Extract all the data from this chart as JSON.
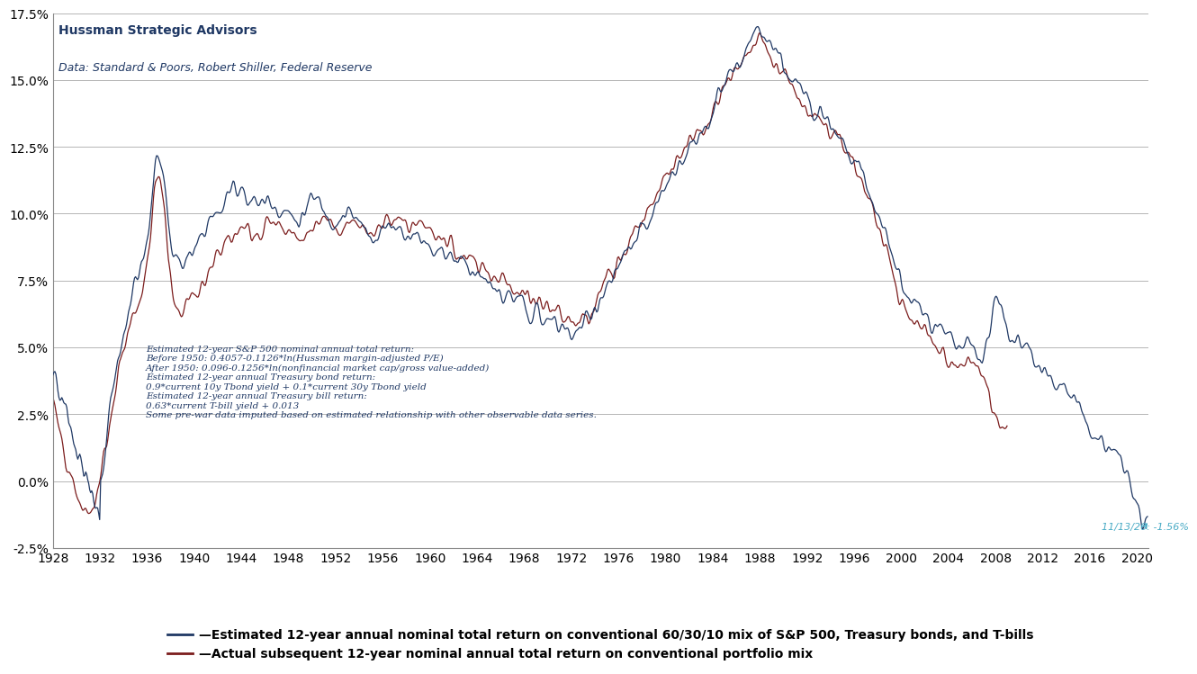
{
  "title_line1": "Hussman Strategic Advisors",
  "title_line2": "Data: Standard & Poors, Robert Shiller, Federal Reserve",
  "annotation_text": [
    "Estimated 12-year S&P 500 nominal annual total return:",
    "Before 1950: 0.4057-0.1126*ln(Hussman margin-adjusted P/E)",
    "After 1950: 0.096-0.1256*ln(nonfinancial market cap/gross value-added)",
    "Estimated 12-year annual Treasury bond return:",
    "0.9*current 10y Tbond yield + 0.1*current 30y Tbond yield",
    "Estimated 12-year annual Treasury bill return:",
    "0.63*current T-bill yield + 0.013",
    "Some pre-war data imputed based on estimated relationship with other observable data series."
  ],
  "callout_text": "11/13/20: -1.56%",
  "legend_line1": "—Estimated 12-year annual nominal total return on conventional 60/30/10 mix of S&P 500, Treasury bonds, and T-bills",
  "legend_line2": "—Actual subsequent 12-year nominal annual total return on conventional portfolio mix",
  "color_estimated": "#1F3864",
  "color_actual": "#7B1C1C",
  "color_callout": "#4BACC6",
  "ylim_min": -0.025,
  "ylim_max": 0.175,
  "yticks": [
    -0.025,
    0.0,
    0.025,
    0.05,
    0.075,
    0.1,
    0.125,
    0.15,
    0.175
  ],
  "ytick_labels": [
    "-2.5%",
    "0.0%",
    "2.5%",
    "5.0%",
    "7.5%",
    "10.0%",
    "12.5%",
    "15.0%",
    "17.5%"
  ],
  "xlim_min": 1928,
  "xlim_max": 2021,
  "xticks": [
    1928,
    1932,
    1936,
    1940,
    1944,
    1948,
    1952,
    1956,
    1960,
    1964,
    1968,
    1972,
    1976,
    1980,
    1984,
    1988,
    1992,
    1996,
    2000,
    2004,
    2008,
    2012,
    2016,
    2020
  ]
}
